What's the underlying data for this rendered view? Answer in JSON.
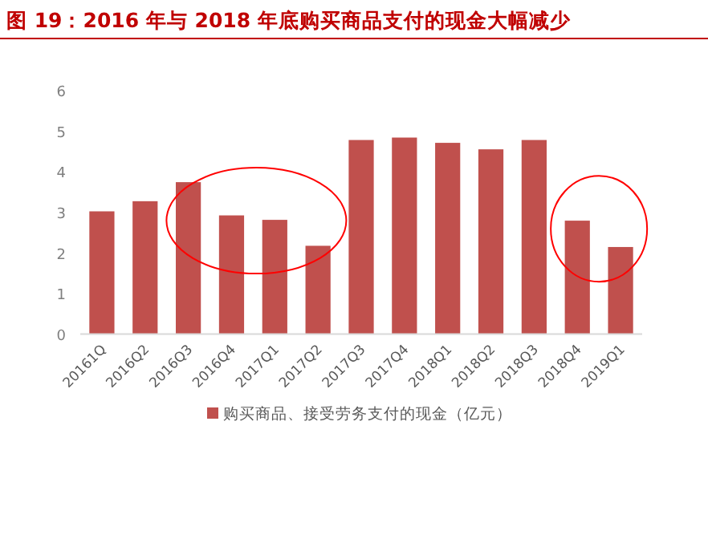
{
  "chart_data": {
    "type": "bar",
    "title": "图 19：2016 年与 2018 年底购买商品支付的现金大幅减少",
    "categories": [
      "20161Q",
      "2016Q2",
      "2016Q3",
      "2016Q4",
      "2017Q1",
      "2017Q2",
      "2017Q3",
      "2017Q4",
      "2018Q1",
      "2018Q2",
      "2018Q3",
      "2018Q4",
      "2019Q1"
    ],
    "series": [
      {
        "name": "购买商品、接受劳务支付的现金（亿元）",
        "color": "#c0504d",
        "values": [
          3.03,
          3.28,
          3.75,
          2.93,
          2.82,
          2.18,
          4.79,
          4.85,
          4.72,
          4.56,
          4.79,
          2.8,
          2.15
        ]
      }
    ],
    "ylim": [
      0,
      6
    ],
    "yticks": [
      0,
      1,
      2,
      3,
      4,
      5,
      6
    ],
    "legend": "bottom"
  }
}
